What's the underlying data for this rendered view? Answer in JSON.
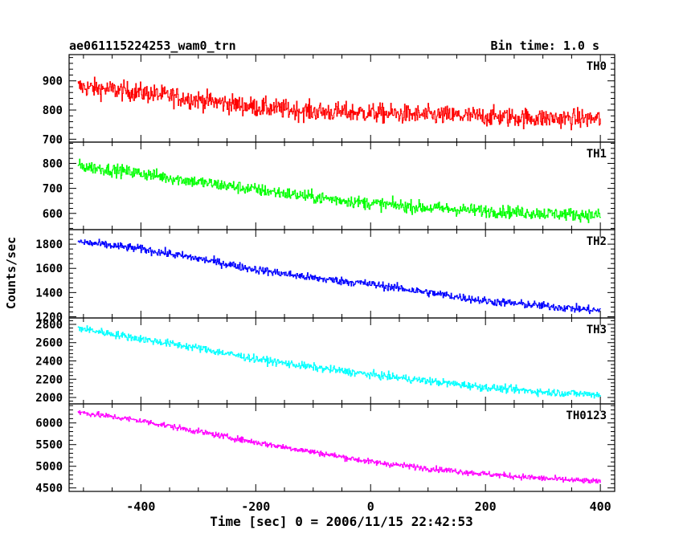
{
  "figure": {
    "title": "ae061115224253_wam0_trn",
    "bin_time": "Bin time: 1.0 s",
    "xlabel": "Time [sec] 0 = 2006/11/15 22:42:53",
    "ylabel": "Counts/sec"
  },
  "chart_data": [
    {
      "type": "line",
      "series": [
        {
          "name": "TH0",
          "color": "#ff0000",
          "trend": [
            [
              -510,
              880
            ],
            [
              -400,
              860
            ],
            [
              -300,
              835
            ],
            [
              -200,
              810
            ],
            [
              -100,
              795
            ],
            [
              0,
              790
            ],
            [
              100,
              782
            ],
            [
              200,
              778
            ],
            [
              300,
              772
            ],
            [
              400,
              770
            ]
          ],
          "noise": 60
        }
      ],
      "xlim": [
        -525,
        425
      ],
      "ylim": [
        690,
        990
      ],
      "yticks": [
        700,
        800,
        900
      ],
      "xticks": [
        -400,
        -200,
        0,
        200,
        400
      ],
      "label": "TH0"
    },
    {
      "type": "line",
      "series": [
        {
          "name": "TH1",
          "color": "#00ff00",
          "trend": [
            [
              -510,
              790
            ],
            [
              -400,
              760
            ],
            [
              -300,
              725
            ],
            [
              -200,
              695
            ],
            [
              -100,
              665
            ],
            [
              0,
              640
            ],
            [
              100,
              622
            ],
            [
              200,
              610
            ],
            [
              300,
              600
            ],
            [
              400,
              592
            ]
          ],
          "noise": 45
        }
      ],
      "xlim": [
        -525,
        425
      ],
      "ylim": [
        535,
        885
      ],
      "yticks": [
        600,
        700,
        800
      ],
      "xticks": [
        -400,
        -200,
        0,
        200,
        400
      ],
      "label": "TH1"
    },
    {
      "type": "line",
      "series": [
        {
          "name": "TH2",
          "color": "#0000ff",
          "trend": [
            [
              -510,
              1820
            ],
            [
              -400,
              1760
            ],
            [
              -300,
              1680
            ],
            [
              -200,
              1590
            ],
            [
              -100,
              1520
            ],
            [
              0,
              1470
            ],
            [
              100,
              1400
            ],
            [
              200,
              1330
            ],
            [
              300,
              1290
            ],
            [
              400,
              1250
            ]
          ],
          "noise": 60
        }
      ],
      "xlim": [
        -525,
        425
      ],
      "ylim": [
        1190,
        1920
      ],
      "yticks": [
        1200,
        1400,
        1600,
        1800
      ],
      "xticks": [
        -400,
        -200,
        0,
        200,
        400
      ],
      "label": "TH2"
    },
    {
      "type": "line",
      "series": [
        {
          "name": "TH3",
          "color": "#00ffff",
          "trend": [
            [
              -510,
              2760
            ],
            [
              -400,
              2640
            ],
            [
              -300,
              2540
            ],
            [
              -200,
              2420
            ],
            [
              -100,
              2330
            ],
            [
              0,
              2250
            ],
            [
              100,
              2180
            ],
            [
              200,
              2110
            ],
            [
              300,
              2060
            ],
            [
              400,
              2030
            ]
          ],
          "noise": 75
        }
      ],
      "xlim": [
        -525,
        425
      ],
      "ylim": [
        1930,
        2870
      ],
      "yticks": [
        2000,
        2200,
        2400,
        2600,
        2800
      ],
      "xticks": [
        -400,
        -200,
        0,
        200,
        400
      ],
      "label": "TH3"
    },
    {
      "type": "line",
      "series": [
        {
          "name": "TH0123",
          "color": "#ff00ff",
          "trend": [
            [
              -510,
              6250
            ],
            [
              -400,
              6050
            ],
            [
              -300,
              5800
            ],
            [
              -200,
              5550
            ],
            [
              -100,
              5330
            ],
            [
              0,
              5100
            ],
            [
              100,
              4950
            ],
            [
              200,
              4820
            ],
            [
              300,
              4720
            ],
            [
              400,
              4640
            ]
          ],
          "noise": 120
        }
      ],
      "xlim": [
        -525,
        425
      ],
      "ylim": [
        4420,
        6440
      ],
      "yticks": [
        4500,
        5000,
        5500,
        6000
      ],
      "xticks": [
        -400,
        -200,
        0,
        200,
        400
      ],
      "label": "TH0123"
    }
  ]
}
